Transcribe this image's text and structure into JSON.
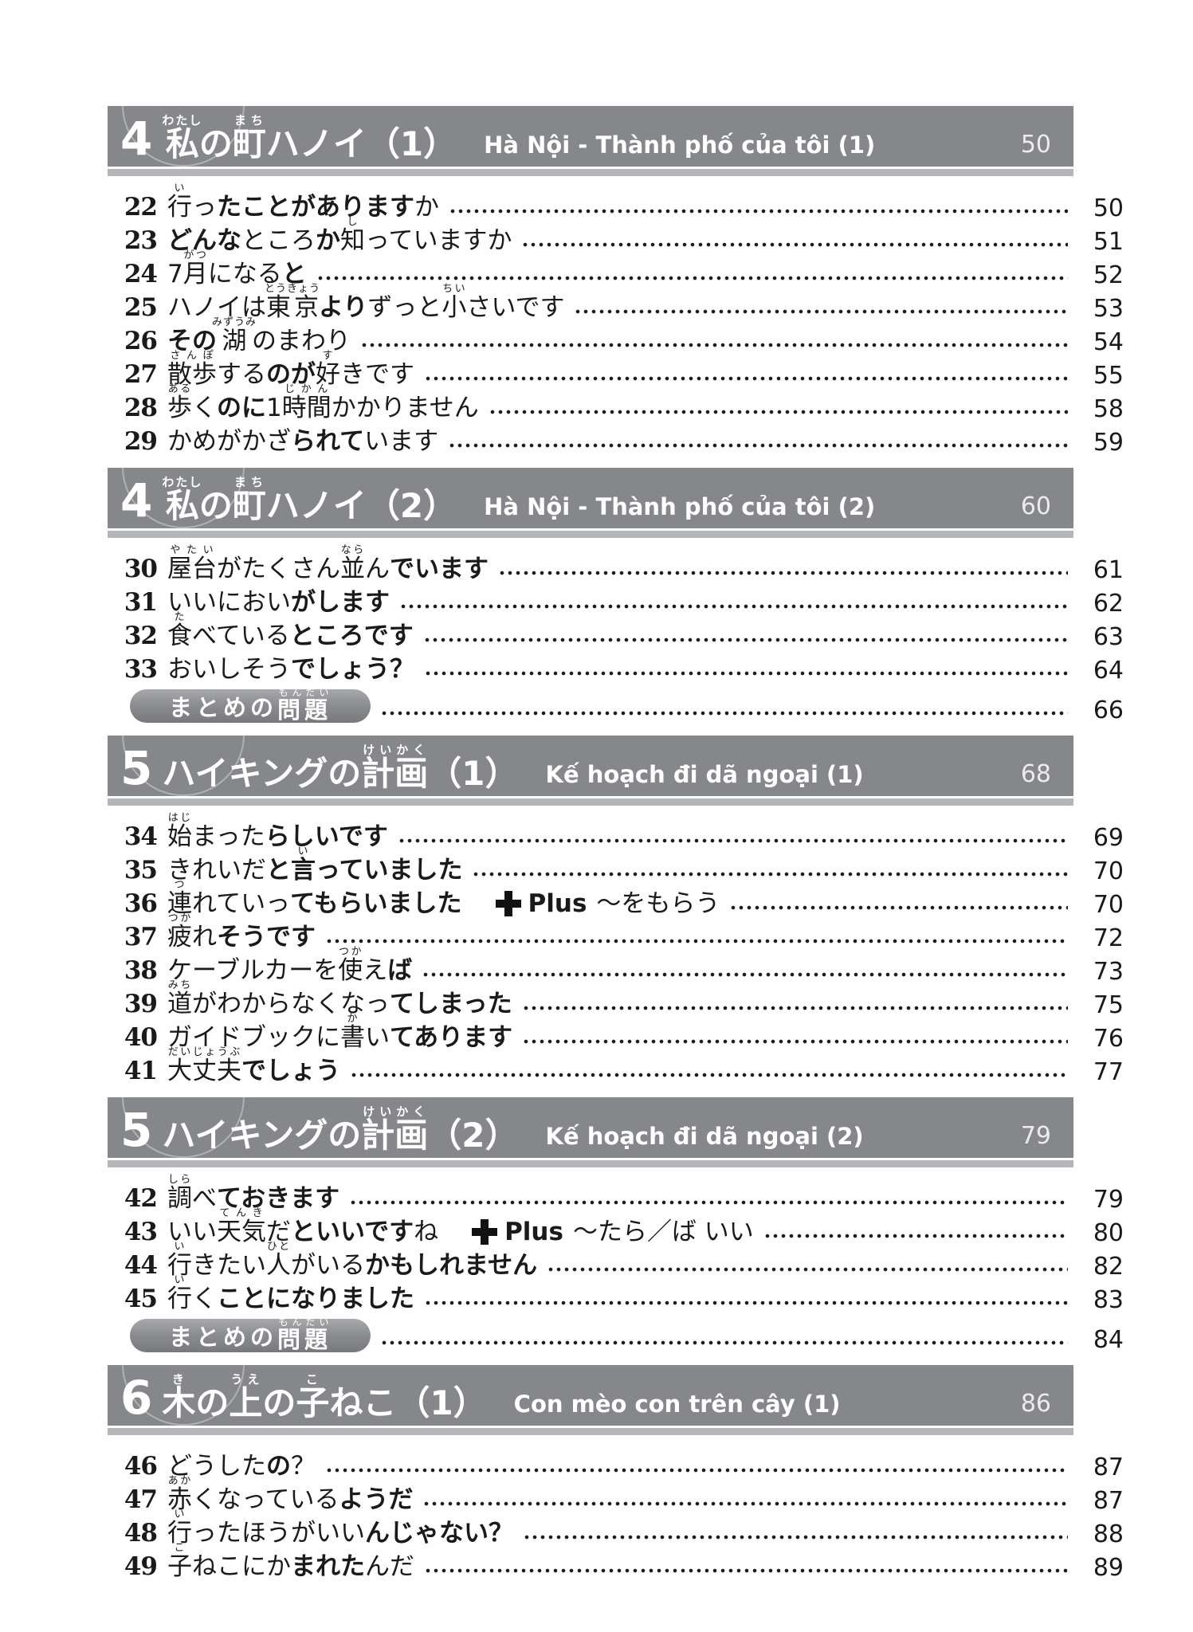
{
  "colors": {
    "header_bg": "#85878a",
    "header_strip": "#b3b5b8",
    "header_text": "#ffffff",
    "text_color": "#1a1a1a",
    "badge_top": "#a7a9ac",
    "badge_bottom": "#77797c"
  },
  "plus_label": "Plus",
  "badge_segments": [
    {
      "t": "まとめの"
    },
    {
      "t": "問題",
      "r": "もんだい"
    }
  ],
  "sections": [
    {
      "number": "4",
      "title_segments": [
        {
          "t": "私",
          "r": "わたし"
        },
        {
          "t": "の"
        },
        {
          "t": "町",
          "r": "まち"
        },
        {
          "t": "ハノイ（1）"
        }
      ],
      "subtitle": "Hà Nội - Thành phố của tôi (1)",
      "page": "50",
      "entries": [
        {
          "num": "22",
          "segments": [
            {
              "t": "行",
              "r": "い"
            },
            {
              "t": "っ"
            },
            {
              "t": "たことがあります",
              "b": true
            },
            {
              "t": "か"
            }
          ],
          "page": "50"
        },
        {
          "num": "23",
          "segments": [
            {
              "t": "どんな",
              "b": true
            },
            {
              "t": "ところ"
            },
            {
              "t": "か",
              "b": true
            },
            {
              "t": "知",
              "r": "し"
            },
            {
              "t": "っていますか"
            }
          ],
          "page": "51"
        },
        {
          "num": "24",
          "segments": [
            {
              "t": "7"
            },
            {
              "t": "月",
              "r": "がつ"
            },
            {
              "t": "になる"
            },
            {
              "t": "と",
              "b": true
            }
          ],
          "page": "52"
        },
        {
          "num": "25",
          "segments": [
            {
              "t": "ハノイは"
            },
            {
              "t": "東京",
              "r": "とうきょう"
            },
            {
              "t": "より",
              "b": true
            },
            {
              "t": "ずっと"
            },
            {
              "t": "小",
              "r": "ちい"
            },
            {
              "t": "さいです"
            }
          ],
          "page": "53"
        },
        {
          "num": "26",
          "segments": [
            {
              "t": "その",
              "b": true
            },
            {
              "t": "湖",
              "r": "みずうみ"
            },
            {
              "t": "のまわり"
            }
          ],
          "page": "54"
        },
        {
          "num": "27",
          "segments": [
            {
              "t": "散歩",
              "r": "さんぽ"
            },
            {
              "t": "する"
            },
            {
              "t": "のが",
              "b": true
            },
            {
              "t": "好",
              "r": "す"
            },
            {
              "t": "きです"
            }
          ],
          "page": "55"
        },
        {
          "num": "28",
          "segments": [
            {
              "t": "歩",
              "r": "ある"
            },
            {
              "t": "く"
            },
            {
              "t": "のに",
              "b": true
            },
            {
              "t": "1"
            },
            {
              "t": "時間",
              "r": "じかん"
            },
            {
              "t": "かかりません"
            }
          ],
          "page": "58"
        },
        {
          "num": "29",
          "segments": [
            {
              "t": "かめがかざ"
            },
            {
              "t": "られて",
              "b": true
            },
            {
              "t": "います"
            }
          ],
          "page": "59"
        }
      ]
    },
    {
      "number": "4",
      "title_segments": [
        {
          "t": "私",
          "r": "わたし"
        },
        {
          "t": "の"
        },
        {
          "t": "町",
          "r": "まち"
        },
        {
          "t": "ハノイ（2）"
        }
      ],
      "subtitle": "Hà Nội - Thành phố của tôi (2)",
      "page": "60",
      "entries": [
        {
          "num": "30",
          "segments": [
            {
              "t": "屋台",
              "r": "やたい"
            },
            {
              "t": "がたくさん"
            },
            {
              "t": "並",
              "r": "なら"
            },
            {
              "t": "ん"
            },
            {
              "t": "でいます",
              "b": true
            }
          ],
          "page": "61"
        },
        {
          "num": "31",
          "segments": [
            {
              "t": "いいにおい"
            },
            {
              "t": "がします",
              "b": true
            }
          ],
          "page": "62"
        },
        {
          "num": "32",
          "segments": [
            {
              "t": "食",
              "r": "た"
            },
            {
              "t": "べている"
            },
            {
              "t": "ところです",
              "b": true
            }
          ],
          "page": "63"
        },
        {
          "num": "33",
          "segments": [
            {
              "t": "おいしそう"
            },
            {
              "t": "でしょう？",
              "b": true
            }
          ],
          "page": "64"
        },
        {
          "badge": true,
          "page": "66"
        }
      ]
    },
    {
      "number": "5",
      "title_segments": [
        {
          "t": "ハイキングの"
        },
        {
          "t": "計画",
          "r": "けいかく"
        },
        {
          "t": "（1）"
        }
      ],
      "subtitle": "Kế hoạch đi dã ngoại (1)",
      "page": "68",
      "entries": [
        {
          "num": "34",
          "segments": [
            {
              "t": "始",
              "r": "はじ"
            },
            {
              "t": "まった"
            },
            {
              "t": "らしいです",
              "b": true
            }
          ],
          "page": "69"
        },
        {
          "num": "35",
          "segments": [
            {
              "t": "きれいだ"
            },
            {
              "t": "と",
              "b": true
            },
            {
              "t": "言",
              "r": "い",
              "b": true
            },
            {
              "t": "っていました",
              "b": true
            }
          ],
          "page": "70"
        },
        {
          "num": "36",
          "segments": [
            {
              "t": "連",
              "r": "つ"
            },
            {
              "t": "れていっ"
            },
            {
              "t": "てもらいました",
              "b": true
            }
          ],
          "plus": "〜をもらう",
          "page": "70"
        },
        {
          "num": "37",
          "segments": [
            {
              "t": "疲",
              "r": "つか"
            },
            {
              "t": "れ"
            },
            {
              "t": "そうです",
              "b": true
            }
          ],
          "page": "72"
        },
        {
          "num": "38",
          "segments": [
            {
              "t": "ケーブルカーを"
            },
            {
              "t": "使",
              "r": "つか"
            },
            {
              "t": "え"
            },
            {
              "t": "ば",
              "b": true
            }
          ],
          "page": "73"
        },
        {
          "num": "39",
          "segments": [
            {
              "t": "道",
              "r": "みち"
            },
            {
              "t": "がわからなくなっ"
            },
            {
              "t": "てしまった",
              "b": true
            }
          ],
          "page": "75"
        },
        {
          "num": "40",
          "segments": [
            {
              "t": "ガイドブックに"
            },
            {
              "t": "書",
              "r": "か"
            },
            {
              "t": "い"
            },
            {
              "t": "てあります",
              "b": true
            }
          ],
          "page": "76"
        },
        {
          "num": "41",
          "segments": [
            {
              "t": "大丈夫",
              "r": "だいじょうぶ"
            },
            {
              "t": "でしょう",
              "b": true
            }
          ],
          "page": "77"
        }
      ]
    },
    {
      "number": "5",
      "title_segments": [
        {
          "t": "ハイキングの"
        },
        {
          "t": "計画",
          "r": "けいかく"
        },
        {
          "t": "（2）"
        }
      ],
      "subtitle": "Kế hoạch đi dã ngoại (2)",
      "page": "79",
      "entries": [
        {
          "num": "42",
          "segments": [
            {
              "t": "調",
              "r": "しら"
            },
            {
              "t": "べ"
            },
            {
              "t": "ておきます",
              "b": true
            }
          ],
          "page": "79"
        },
        {
          "num": "43",
          "segments": [
            {
              "t": "いい"
            },
            {
              "t": "天気",
              "r": "てんき"
            },
            {
              "t": "だ"
            },
            {
              "t": "といいです",
              "b": true
            },
            {
              "t": "ね"
            }
          ],
          "plus": "〜たら／ば いい",
          "page": "80"
        },
        {
          "num": "44",
          "segments": [
            {
              "t": "行",
              "r": "い"
            },
            {
              "t": "きたい"
            },
            {
              "t": "人",
              "r": "ひと"
            },
            {
              "t": "がいる"
            },
            {
              "t": "かもしれません",
              "b": true
            }
          ],
          "page": "82"
        },
        {
          "num": "45",
          "segments": [
            {
              "t": "行",
              "r": "い"
            },
            {
              "t": "く"
            },
            {
              "t": "ことになりました",
              "b": true
            }
          ],
          "page": "83"
        },
        {
          "badge": true,
          "page": "84"
        }
      ]
    },
    {
      "number": "6",
      "title_segments": [
        {
          "t": "木",
          "r": "き"
        },
        {
          "t": "の"
        },
        {
          "t": "上",
          "r": "うえ"
        },
        {
          "t": "の"
        },
        {
          "t": "子",
          "r": "こ"
        },
        {
          "t": "ねこ（1）"
        }
      ],
      "subtitle": "Con mèo con trên cây (1)",
      "page": "86",
      "entries": [
        {
          "num": "46",
          "segments": [
            {
              "t": "どうした"
            },
            {
              "t": "の",
              "b": true
            },
            {
              "t": "？"
            }
          ],
          "page": "87"
        },
        {
          "num": "47",
          "segments": [
            {
              "t": "赤",
              "r": "あか"
            },
            {
              "t": "くなっている"
            },
            {
              "t": "ようだ",
              "b": true
            }
          ],
          "page": "87"
        },
        {
          "num": "48",
          "segments": [
            {
              "t": "行",
              "r": "い"
            },
            {
              "t": "ったほうがいい"
            },
            {
              "t": "んじゃない？",
              "b": true
            }
          ],
          "page": "88"
        },
        {
          "num": "49",
          "segments": [
            {
              "t": "子",
              "r": "こ"
            },
            {
              "t": "ねこにか"
            },
            {
              "t": "まれた",
              "b": true
            },
            {
              "t": "んだ"
            }
          ],
          "page": "89"
        }
      ]
    }
  ]
}
